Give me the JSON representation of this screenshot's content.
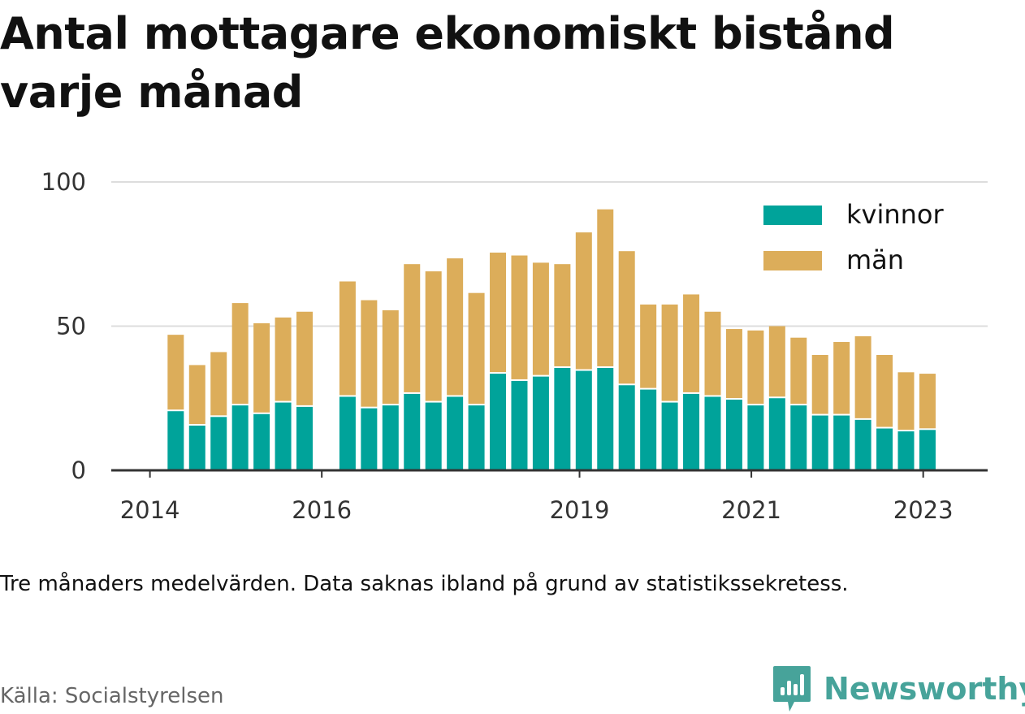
{
  "title": "Antal mottagare ekonomiskt bistånd varje månad",
  "note": "Tre månaders medelvärden. Data saknas ibland på grund av statistikssekretess.",
  "source": "Källa: Socialstyrelsen",
  "brand": {
    "name": "Newsworthy",
    "icon": "newsworthy-logo-icon",
    "color": "#47a39a"
  },
  "chart_data": {
    "type": "bar",
    "stacked": true,
    "x": [
      2014.3,
      2014.55,
      2014.8,
      2015.05,
      2015.3,
      2015.55,
      2015.8,
      2016.3,
      2016.55,
      2016.8,
      2017.05,
      2017.3,
      2017.55,
      2017.8,
      2018.05,
      2018.3,
      2018.55,
      2018.8,
      2019.05,
      2019.3,
      2019.55,
      2019.8,
      2020.05,
      2020.3,
      2020.55,
      2020.8,
      2021.05,
      2021.3,
      2021.55,
      2021.8,
      2022.05,
      2022.3,
      2022.55,
      2022.8,
      2023.05
    ],
    "series": [
      {
        "name": "kvinnor",
        "color": "#00a39a",
        "values": [
          20.5,
          15.5,
          18.5,
          22.5,
          19.5,
          23.5,
          22,
          25.5,
          21.5,
          22.5,
          26.5,
          23.5,
          25.5,
          22.5,
          33.5,
          31,
          32.5,
          35.5,
          34.5,
          35.5,
          29.5,
          28,
          23.5,
          26.5,
          25.5,
          24.5,
          22.5,
          25,
          22.5,
          19,
          19,
          17.5,
          14.5,
          13.5,
          14
        ]
      },
      {
        "name": "män",
        "color": "#dcad5a",
        "values": [
          26.5,
          21,
          22.5,
          35.5,
          31.5,
          29.5,
          33,
          40,
          37.5,
          33,
          45,
          45.5,
          48,
          39,
          42,
          43.5,
          39.5,
          36,
          48,
          55,
          46.5,
          29.5,
          34,
          34.5,
          29.5,
          24.5,
          26,
          25,
          23.5,
          21,
          25.5,
          29,
          25.5,
          20.5,
          19.5
        ]
      }
    ],
    "xticks": [
      2014,
      2016,
      2019,
      2021,
      2023
    ],
    "xtick_labels": [
      "2014",
      "2016",
      "2019",
      "2021",
      "2023"
    ],
    "yticks": [
      0,
      50,
      100
    ],
    "ytick_labels": [
      "0",
      "50",
      "100"
    ],
    "xlim": [
      2013.55,
      2023.75
    ],
    "ylim": [
      0,
      100
    ],
    "grid": true,
    "legend": "top-right"
  }
}
